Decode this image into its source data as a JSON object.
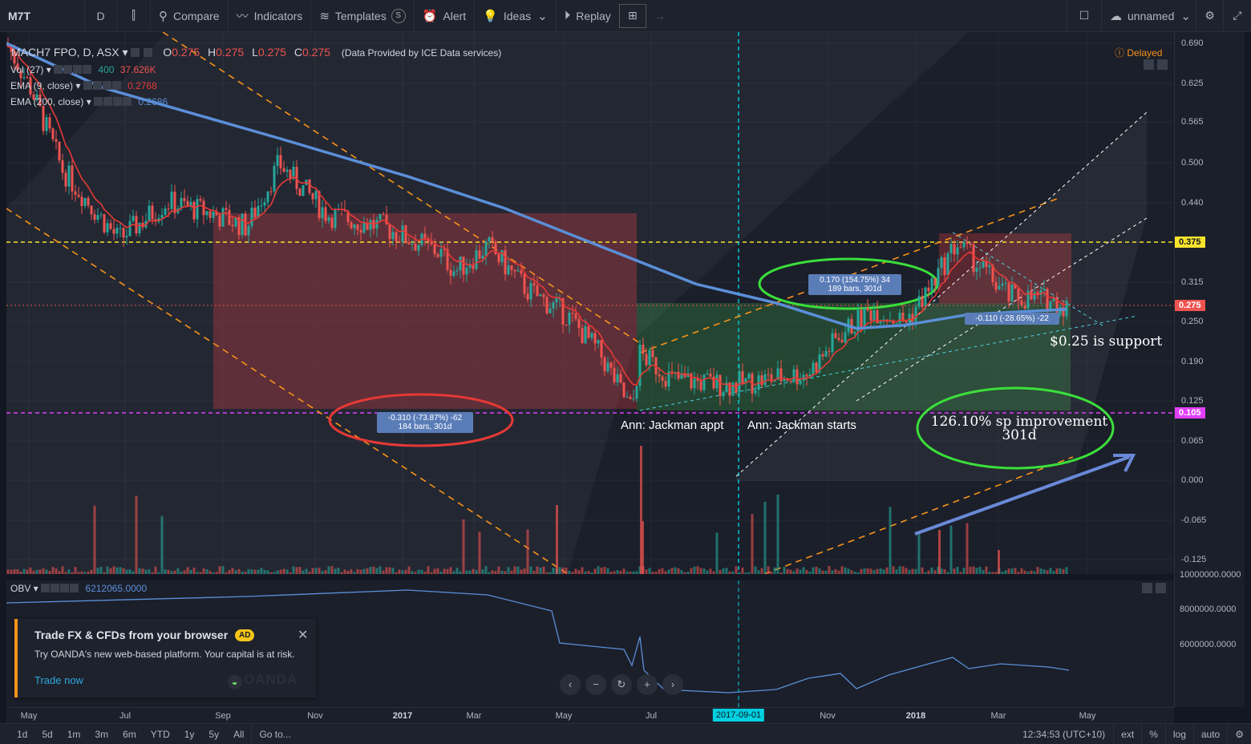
{
  "toolbar": {
    "symbol": "M7T",
    "interval": "D",
    "compare_label": "Compare",
    "indicators_label": "Indicators",
    "templates_label": "Templates",
    "alert_label": "Alert",
    "ideas_label": "Ideas",
    "replay_label": "Replay",
    "layout_name": "unnamed"
  },
  "legend": {
    "title": "MACH7 FPO, D, ASX",
    "open_label": "O",
    "open": "0.275",
    "high_label": "H",
    "high": "0.275",
    "low_label": "L",
    "low": "0.275",
    "close_label": "C",
    "close": "0.275",
    "provider": "(Data Provided by ICE Data services)",
    "vol_name": "Vol (27)",
    "vol_v1": "400",
    "vol_v2": "37.626K",
    "ema9_name": "EMA (9, close)",
    "ema9_val": "0.2768",
    "ema200_name": "EMA (200, close)",
    "ema200_val": "0.2686",
    "obv_name": "OBV",
    "obv_val": "6212065.0000",
    "delayed": "Delayed"
  },
  "price_axis": {
    "ticks": [
      "0.690",
      "0.625",
      "0.565",
      "0.500",
      "0.440",
      "0.375",
      "0.315",
      "0.250",
      "0.190",
      "0.125",
      "0.065",
      "0.000",
      "-0.065",
      "-0.125"
    ],
    "tag_375": "0.375",
    "tag_275": "0.275",
    "tag_105": "0.105"
  },
  "obv_axis": {
    "ticks": [
      "10000000.0000",
      "8000000.0000",
      "6000000.0000"
    ]
  },
  "time_axis": {
    "ticks": [
      "May",
      "Jul",
      "Sep",
      "Nov",
      "2017",
      "Mar",
      "May",
      "Jul",
      "Nov",
      "2018",
      "Mar",
      "May"
    ],
    "tag": "2017-09-01"
  },
  "annotations": {
    "measure_down_1": "-0.310 (-73.87%) -62",
    "measure_down_2": "184 bars, 301d",
    "measure_up_1": "0.170 (154.75%) 34",
    "measure_up_2": "189 bars, 301d",
    "measure_recent": "-0.110 (-28.65%) -22",
    "support_text": "$0.25 is support",
    "ann_appt": "Ann: Jackman appt",
    "ann_starts": "Ann: Jackman starts",
    "improvement_1": "126.10% sp improvement",
    "improvement_2": "301d"
  },
  "ad": {
    "title": "Trade FX & CFDs from your browser",
    "badge": "AD",
    "desc": "Try OANDA's new web-based platform. Your capital is at risk.",
    "link": "Trade now",
    "brand": "OANDA"
  },
  "bottombar": {
    "ranges": [
      "1d",
      "5d",
      "1m",
      "3m",
      "6m",
      "YTD",
      "1y",
      "5y",
      "All"
    ],
    "goto": "Go to...",
    "clock": "12:34:53 (UTC+10)",
    "ext": "ext",
    "pct": "%",
    "log": "log",
    "auto": "auto"
  },
  "colors": {
    "up": "#26a69a",
    "down": "#ef5350",
    "ema9": "#e53935",
    "ema200": "#5b8fd8",
    "support_dashed": "#f7e32c",
    "low_dashed": "#e040fb",
    "vertical_marker": "#00d0e0"
  }
}
